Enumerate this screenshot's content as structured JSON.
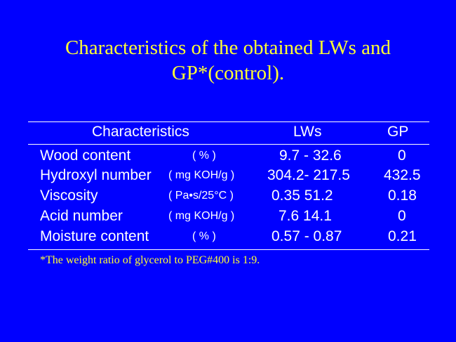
{
  "title": {
    "line1": "Characteristics of the obtained LWs and",
    "line2": "GP*(control)."
  },
  "table": {
    "headers": {
      "characteristics": "Characteristics",
      "lws": "LWs",
      "gp": "GP"
    },
    "rows": [
      {
        "name": "Wood content",
        "unit": "( % )",
        "lws": "9.7 - 32.6",
        "gp": "0"
      },
      {
        "name": "Hydroxyl number",
        "unit": "( mg KOH/g )",
        "lws": "304.2- 217.5",
        "gp": "432.5"
      },
      {
        "name": "Viscosity",
        "unit": "( Pa•s/25°C )",
        "lws": "0.35 51.2",
        "gp": "0.18"
      },
      {
        "name": "Acid number",
        "unit": "( mg KOH/g )",
        "lws": "7.6 14.1",
        "gp": "0"
      },
      {
        "name": "Moisture content",
        "unit": "( % )",
        "lws": "0.57 - 0.87",
        "gp": "0.21"
      }
    ]
  },
  "footnote": "*The weight ratio of glycerol to PEG#400 is 1:9.",
  "colors": {
    "background": "#0000ff",
    "title": "#ffff33",
    "table_text": "#ffffff",
    "footnote": "#ffff33"
  }
}
